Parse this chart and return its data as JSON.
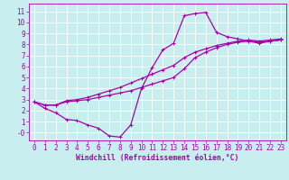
{
  "xlabel": "Windchill (Refroidissement éolien,°C)",
  "bg_color": "#c8eef0",
  "line_color": "#aa00aa",
  "grid_color": "#ffffff",
  "spine_color": "#7070c0",
  "xlim": [
    -0.5,
    23.5
  ],
  "ylim": [
    -0.7,
    11.7
  ],
  "xticks": [
    0,
    1,
    2,
    3,
    4,
    5,
    6,
    7,
    8,
    9,
    10,
    11,
    12,
    13,
    14,
    15,
    16,
    17,
    18,
    19,
    20,
    21,
    22,
    23
  ],
  "yticks": [
    0,
    1,
    2,
    3,
    4,
    5,
    6,
    7,
    8,
    9,
    10,
    11
  ],
  "line1_x": [
    0,
    1,
    2,
    3,
    4,
    5,
    6,
    7,
    8,
    9,
    10,
    11,
    12,
    13,
    14,
    15,
    16,
    17,
    18,
    19,
    20,
    21,
    22,
    23
  ],
  "line1_y": [
    2.8,
    2.2,
    1.8,
    1.2,
    1.1,
    0.7,
    0.4,
    -0.3,
    -0.4,
    0.7,
    4.0,
    5.9,
    7.5,
    8.1,
    10.6,
    10.8,
    10.9,
    9.1,
    8.7,
    8.5,
    8.3,
    8.1,
    8.3,
    8.4
  ],
  "line2_x": [
    0,
    1,
    2,
    3,
    4,
    5,
    6,
    7,
    8,
    9,
    10,
    11,
    12,
    13,
    14,
    15,
    16,
    17,
    18,
    19,
    20,
    21,
    22,
    23
  ],
  "line2_y": [
    2.8,
    2.5,
    2.5,
    2.8,
    2.9,
    3.0,
    3.2,
    3.4,
    3.6,
    3.8,
    4.1,
    4.4,
    4.7,
    5.0,
    5.8,
    6.8,
    7.3,
    7.7,
    8.0,
    8.2,
    8.3,
    8.2,
    8.3,
    8.4
  ],
  "line3_x": [
    0,
    1,
    2,
    3,
    4,
    5,
    6,
    7,
    8,
    9,
    10,
    11,
    12,
    13,
    14,
    15,
    16,
    17,
    18,
    19,
    20,
    21,
    22,
    23
  ],
  "line3_y": [
    2.8,
    2.5,
    2.5,
    2.9,
    3.0,
    3.2,
    3.5,
    3.8,
    4.1,
    4.5,
    4.9,
    5.3,
    5.7,
    6.1,
    6.8,
    7.3,
    7.6,
    7.9,
    8.1,
    8.3,
    8.4,
    8.3,
    8.4,
    8.5
  ],
  "tick_fontsize": 5.5,
  "xlabel_fontsize": 5.8,
  "marker_size": 2.5,
  "linewidth": 0.9
}
